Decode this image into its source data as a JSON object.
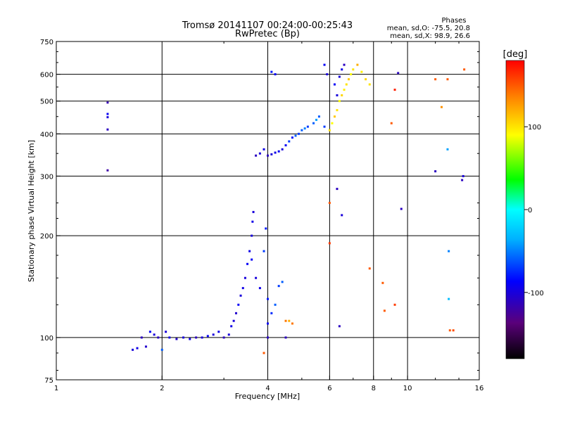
{
  "chart_data": {
    "type": "scatter",
    "title": "Tromsø 20141107 00:24:00-00:25:43",
    "subtitle": "RwPretec (Bp)",
    "xlabel": "Frequency [MHz]",
    "ylabel": "Stationary phase Virtual Height [km]",
    "x_scale": "log",
    "y_scale": "log",
    "xlim": [
      1,
      16
    ],
    "ylim": [
      75,
      750
    ],
    "x_ticks": [
      {
        "value": 1,
        "label": "1"
      },
      {
        "value": 2,
        "label": "2"
      },
      {
        "value": 4,
        "label": "4"
      },
      {
        "value": 6,
        "label": "6"
      },
      {
        "value": 8,
        "label": "8"
      },
      {
        "value": 10,
        "label": "10"
      },
      {
        "value": 16,
        "label": "16"
      }
    ],
    "x_grid": [
      2,
      4,
      6,
      8,
      10
    ],
    "y_ticks": [
      {
        "value": 75,
        "label": "75"
      },
      {
        "value": 100,
        "label": "100"
      },
      {
        "value": 200,
        "label": "200"
      },
      {
        "value": 300,
        "label": "300"
      },
      {
        "value": 400,
        "label": "400"
      },
      {
        "value": 500,
        "label": "500"
      },
      {
        "value": 600,
        "label": "600"
      },
      {
        "value": 750,
        "label": "750"
      }
    ],
    "y_grid": [
      100,
      200,
      300,
      400,
      500,
      600
    ],
    "grid": true,
    "phase_stats": {
      "title": "Phases",
      "line1": "mean, sd,O: -75.5, 20.8",
      "line2": "mean, sd,X:  98.9, 26.6"
    },
    "colorbar": {
      "label": "[deg]",
      "range": [
        -180,
        180
      ],
      "ticks": [
        {
          "value": 100,
          "label": "100"
        },
        {
          "value": 0,
          "label": "0"
        },
        {
          "value": -100,
          "label": "-100"
        }
      ]
    },
    "series": [
      {
        "points_note": "each point: [frequency MHz, virtual height km, phase deg]",
        "points": [
          [
            1.4,
            495,
            -115
          ],
          [
            1.4,
            458,
            -90
          ],
          [
            1.4,
            448,
            -100
          ],
          [
            1.4,
            412,
            -110
          ],
          [
            1.4,
            312,
            -120
          ],
          [
            1.65,
            92,
            -100
          ],
          [
            1.7,
            93,
            -95
          ],
          [
            1.75,
            100,
            -110
          ],
          [
            1.8,
            94,
            -105
          ],
          [
            1.85,
            104,
            -90
          ],
          [
            1.9,
            102,
            -100
          ],
          [
            1.95,
            100,
            -110
          ],
          [
            2.0,
            92,
            -60
          ],
          [
            2.05,
            104,
            -100
          ],
          [
            2.1,
            100,
            -95
          ],
          [
            2.2,
            99,
            -105
          ],
          [
            2.3,
            100,
            -100
          ],
          [
            2.4,
            99,
            -95
          ],
          [
            2.5,
            100,
            -110
          ],
          [
            2.6,
            100,
            -100
          ],
          [
            2.7,
            101,
            -90
          ],
          [
            2.8,
            102,
            -100
          ],
          [
            2.9,
            104,
            -95
          ],
          [
            3.0,
            100,
            -110
          ],
          [
            3.1,
            102,
            -100
          ],
          [
            3.15,
            108,
            -95
          ],
          [
            3.2,
            112,
            -100
          ],
          [
            3.25,
            118,
            -105
          ],
          [
            3.3,
            125,
            -90
          ],
          [
            3.35,
            133,
            -100
          ],
          [
            3.4,
            140,
            -95
          ],
          [
            3.45,
            150,
            -100
          ],
          [
            3.5,
            165,
            -90
          ],
          [
            3.55,
            180,
            -95
          ],
          [
            3.6,
            200,
            -100
          ],
          [
            3.62,
            220,
            -95
          ],
          [
            3.64,
            235,
            -100
          ],
          [
            3.6,
            170,
            -90
          ],
          [
            3.7,
            150,
            -100
          ],
          [
            3.8,
            140,
            -95
          ],
          [
            3.9,
            180,
            -70
          ],
          [
            3.95,
            210,
            -80
          ],
          [
            4.0,
            130,
            -80
          ],
          [
            4.0,
            110,
            -90
          ],
          [
            4.1,
            118,
            -75
          ],
          [
            4.2,
            125,
            -60
          ],
          [
            4.3,
            142,
            -70
          ],
          [
            4.4,
            146,
            -60
          ],
          [
            4.5,
            112,
            140
          ],
          [
            4.5,
            100,
            -110
          ],
          [
            3.7,
            345,
            -110
          ],
          [
            3.8,
            350,
            -100
          ],
          [
            3.9,
            360,
            -95
          ],
          [
            4.0,
            345,
            -110
          ],
          [
            4.1,
            348,
            -100
          ],
          [
            4.2,
            352,
            -95
          ],
          [
            4.3,
            355,
            -90
          ],
          [
            4.4,
            360,
            -100
          ],
          [
            4.5,
            370,
            -90
          ],
          [
            4.6,
            380,
            -70
          ],
          [
            4.7,
            390,
            -80
          ],
          [
            4.8,
            395,
            -60
          ],
          [
            4.9,
            400,
            -70
          ],
          [
            5.0,
            410,
            -60
          ],
          [
            5.1,
            415,
            -50
          ],
          [
            5.2,
            420,
            -70
          ],
          [
            5.4,
            430,
            -60
          ],
          [
            5.5,
            440,
            -40
          ],
          [
            5.6,
            450,
            -60
          ],
          [
            5.8,
            420,
            -70
          ],
          [
            6.0,
            410,
            100
          ],
          [
            6.1,
            430,
            90
          ],
          [
            6.2,
            450,
            110
          ],
          [
            6.3,
            470,
            100
          ],
          [
            6.4,
            500,
            90
          ],
          [
            6.5,
            520,
            105
          ],
          [
            6.6,
            540,
            95
          ],
          [
            6.7,
            560,
            100
          ],
          [
            6.8,
            580,
            110
          ],
          [
            6.9,
            600,
            90
          ],
          [
            7.0,
            620,
            100
          ],
          [
            7.2,
            640,
            120
          ],
          [
            7.4,
            610,
            95
          ],
          [
            7.6,
            580,
            105
          ],
          [
            7.8,
            560,
            100
          ],
          [
            6.2,
            560,
            -90
          ],
          [
            6.4,
            590,
            -100
          ],
          [
            6.5,
            620,
            -95
          ],
          [
            6.6,
            640,
            -110
          ],
          [
            6.3,
            520,
            -100
          ],
          [
            5.8,
            640,
            -90
          ],
          [
            5.9,
            600,
            -100
          ],
          [
            4.1,
            610,
            -80
          ],
          [
            4.2,
            600,
            -90
          ],
          [
            6.0,
            250,
            150
          ],
          [
            6.0,
            190,
            160
          ],
          [
            6.3,
            275,
            -110
          ],
          [
            6.5,
            230,
            -100
          ],
          [
            6.4,
            108,
            -110
          ],
          [
            7.8,
            160,
            150
          ],
          [
            8.5,
            145,
            150
          ],
          [
            8.6,
            120,
            150
          ],
          [
            9.2,
            125,
            160
          ],
          [
            9.0,
            430,
            150
          ],
          [
            9.2,
            540,
            170
          ],
          [
            9.6,
            240,
            -110
          ],
          [
            9.4,
            605,
            -110
          ],
          [
            12.0,
            580,
            150
          ],
          [
            12.0,
            310,
            -110
          ],
          [
            12.5,
            480,
            130
          ],
          [
            13.0,
            580,
            150
          ],
          [
            13.0,
            360,
            -40
          ],
          [
            13.1,
            180,
            -50
          ],
          [
            13.1,
            130,
            -30
          ],
          [
            13.2,
            105,
            150
          ],
          [
            13.5,
            105,
            155
          ],
          [
            14.4,
            300,
            -100
          ],
          [
            14.3,
            292,
            -110
          ],
          [
            14.5,
            620,
            150
          ],
          [
            3.9,
            90,
            150
          ],
          [
            4.0,
            100,
            -110
          ],
          [
            4.7,
            110,
            140
          ],
          [
            4.6,
            112,
            120
          ]
        ]
      }
    ]
  }
}
